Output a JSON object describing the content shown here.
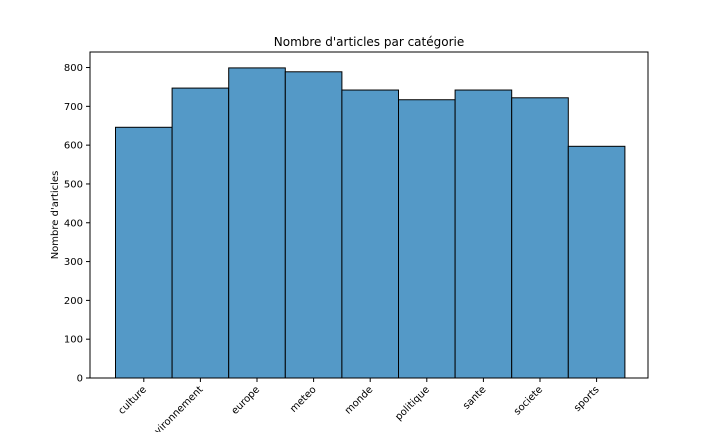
{
  "chart_data": {
    "type": "bar",
    "title": "Nombre d'articles par catégorie",
    "xlabel": "",
    "ylabel": "Nombre d'articles",
    "categories": [
      "culture",
      "environnement",
      "europe",
      "meteo",
      "monde",
      "politique",
      "sante",
      "societe",
      "sports"
    ],
    "values": [
      646,
      747,
      799,
      789,
      742,
      717,
      742,
      722,
      597
    ],
    "ylim": [
      0,
      840
    ],
    "yticks": [
      0,
      100,
      200,
      300,
      400,
      500,
      600,
      700,
      800
    ],
    "bar_color": "#5499c7",
    "edge_color": "#000000",
    "grid": false
  }
}
